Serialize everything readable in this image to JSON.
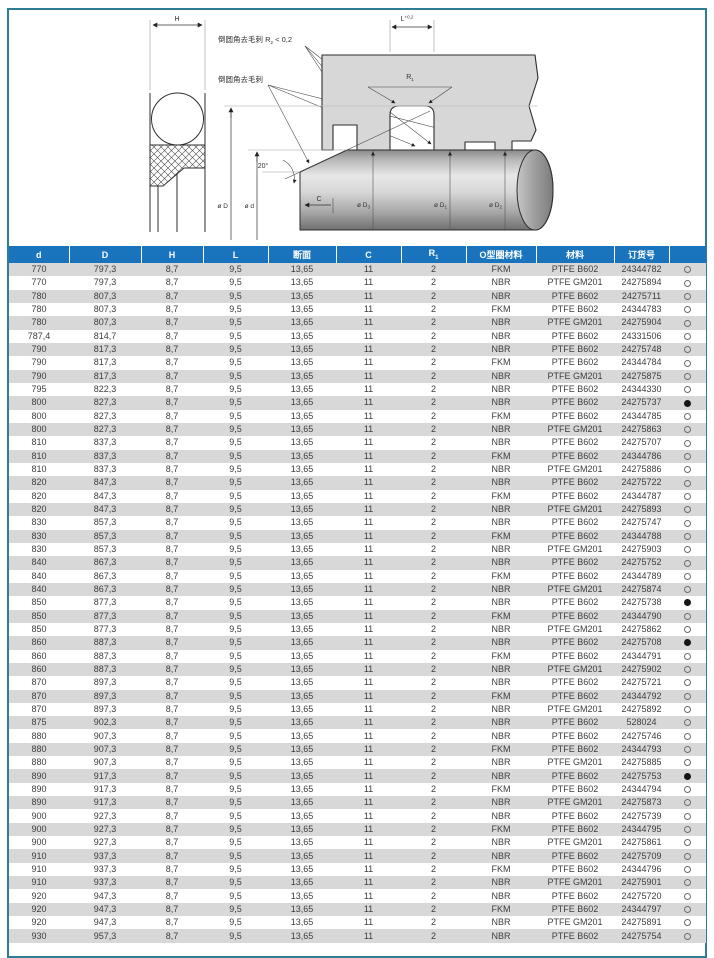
{
  "colors": {
    "header_blue": "#1a74bd",
    "stripe_gray": "#d8d8d8",
    "frame_teal": "#2f7d95",
    "housing_gray": "#d7d7d7",
    "text_dark": "#3d3d3d"
  },
  "diagram": {
    "dim_h": "H",
    "dim_l_base": "L",
    "dim_l_sup": "+0,2",
    "note_top_base": "倒圆角去毛刺 R",
    "note_top_sub": "2",
    "note_top_tail": " < 0,2",
    "note_bottom": "倒圆角去毛刺",
    "r1_base": "R",
    "r1_sub": "1",
    "angle": "20°",
    "dim_c": "C",
    "dia_outer": "ø D",
    "dia_inner": "ø d",
    "rod_dia_labels": [
      {
        "base": "ø D",
        "sub": "3"
      },
      {
        "base": "ø D",
        "sub": "1"
      },
      {
        "base": "ø D",
        "sub": "2"
      }
    ]
  },
  "table": {
    "columns": [
      {
        "label": "d"
      },
      {
        "label": "D"
      },
      {
        "label": "H"
      },
      {
        "label": "L"
      },
      {
        "label": "断面"
      },
      {
        "label": "C"
      },
      {
        "label": "R",
        "sub": "1"
      },
      {
        "label": "O型圈材料"
      },
      {
        "label": "材料"
      },
      {
        "label": "订货号"
      },
      {
        "label": ""
      }
    ],
    "rows": [
      [
        "770",
        "797,3",
        "8,7",
        "9,5",
        "13,65",
        "11",
        "2",
        "FKM",
        "PTFE B602",
        "24344782",
        "open"
      ],
      [
        "770",
        "797,3",
        "8,7",
        "9,5",
        "13,65",
        "11",
        "2",
        "NBR",
        "PTFE GM201",
        "24275894",
        "open"
      ],
      [
        "780",
        "807,3",
        "8,7",
        "9,5",
        "13,65",
        "11",
        "2",
        "NBR",
        "PTFE B602",
        "24275711",
        "open"
      ],
      [
        "780",
        "807,3",
        "8,7",
        "9,5",
        "13,65",
        "11",
        "2",
        "FKM",
        "PTFE B602",
        "24344783",
        "open"
      ],
      [
        "780",
        "807,3",
        "8,7",
        "9,5",
        "13,65",
        "11",
        "2",
        "NBR",
        "PTFE GM201",
        "24275904",
        "open"
      ],
      [
        "787,4",
        "814,7",
        "8,7",
        "9,5",
        "13,65",
        "11",
        "2",
        "NBR",
        "PTFE B602",
        "24331506",
        "open"
      ],
      [
        "790",
        "817,3",
        "8,7",
        "9,5",
        "13,65",
        "11",
        "2",
        "NBR",
        "PTFE B602",
        "24275748",
        "open"
      ],
      [
        "790",
        "817,3",
        "8,7",
        "9,5",
        "13,65",
        "11",
        "2",
        "FKM",
        "PTFE B602",
        "24344784",
        "open"
      ],
      [
        "790",
        "817,3",
        "8,7",
        "9,5",
        "13,65",
        "11",
        "2",
        "NBR",
        "PTFE GM201",
        "24275875",
        "open"
      ],
      [
        "795",
        "822,3",
        "8,7",
        "9,5",
        "13,65",
        "11",
        "2",
        "NBR",
        "PTFE B602",
        "24344330",
        "open"
      ],
      [
        "800",
        "827,3",
        "8,7",
        "9,5",
        "13,65",
        "11",
        "2",
        "NBR",
        "PTFE B602",
        "24275737",
        "filled"
      ],
      [
        "800",
        "827,3",
        "8,7",
        "9,5",
        "13,65",
        "11",
        "2",
        "FKM",
        "PTFE B602",
        "24344785",
        "open"
      ],
      [
        "800",
        "827,3",
        "8,7",
        "9,5",
        "13,65",
        "11",
        "2",
        "NBR",
        "PTFE GM201",
        "24275863",
        "open"
      ],
      [
        "810",
        "837,3",
        "8,7",
        "9,5",
        "13,65",
        "11",
        "2",
        "NBR",
        "PTFE B602",
        "24275707",
        "open"
      ],
      [
        "810",
        "837,3",
        "8,7",
        "9,5",
        "13,65",
        "11",
        "2",
        "FKM",
        "PTFE B602",
        "24344786",
        "open"
      ],
      [
        "810",
        "837,3",
        "8,7",
        "9,5",
        "13,65",
        "11",
        "2",
        "NBR",
        "PTFE GM201",
        "24275886",
        "open"
      ],
      [
        "820",
        "847,3",
        "8,7",
        "9,5",
        "13,65",
        "11",
        "2",
        "NBR",
        "PTFE B602",
        "24275722",
        "open"
      ],
      [
        "820",
        "847,3",
        "8,7",
        "9,5",
        "13,65",
        "11",
        "2",
        "FKM",
        "PTFE B602",
        "24344787",
        "open"
      ],
      [
        "820",
        "847,3",
        "8,7",
        "9,5",
        "13,65",
        "11",
        "2",
        "NBR",
        "PTFE GM201",
        "24275893",
        "open"
      ],
      [
        "830",
        "857,3",
        "8,7",
        "9,5",
        "13,65",
        "11",
        "2",
        "NBR",
        "PTFE B602",
        "24275747",
        "open"
      ],
      [
        "830",
        "857,3",
        "8,7",
        "9,5",
        "13,65",
        "11",
        "2",
        "FKM",
        "PTFE B602",
        "24344788",
        "open"
      ],
      [
        "830",
        "857,3",
        "8,7",
        "9,5",
        "13,65",
        "11",
        "2",
        "NBR",
        "PTFE GM201",
        "24275903",
        "open"
      ],
      [
        "840",
        "867,3",
        "8,7",
        "9,5",
        "13,65",
        "11",
        "2",
        "NBR",
        "PTFE B602",
        "24275752",
        "open"
      ],
      [
        "840",
        "867,3",
        "8,7",
        "9,5",
        "13,65",
        "11",
        "2",
        "FKM",
        "PTFE B602",
        "24344789",
        "open"
      ],
      [
        "840",
        "867,3",
        "8,7",
        "9,5",
        "13,65",
        "11",
        "2",
        "NBR",
        "PTFE GM201",
        "24275874",
        "open"
      ],
      [
        "850",
        "877,3",
        "8,7",
        "9,5",
        "13,65",
        "11",
        "2",
        "NBR",
        "PTFE B602",
        "24275738",
        "filled"
      ],
      [
        "850",
        "877,3",
        "8,7",
        "9,5",
        "13,65",
        "11",
        "2",
        "FKM",
        "PTFE B602",
        "24344790",
        "open"
      ],
      [
        "850",
        "877,3",
        "8,7",
        "9,5",
        "13,65",
        "11",
        "2",
        "NBR",
        "PTFE GM201",
        "24275862",
        "open"
      ],
      [
        "860",
        "887,3",
        "8,7",
        "9,5",
        "13,65",
        "11",
        "2",
        "NBR",
        "PTFE B602",
        "24275708",
        "filled"
      ],
      [
        "860",
        "887,3",
        "8,7",
        "9,5",
        "13,65",
        "11",
        "2",
        "FKM",
        "PTFE B602",
        "24344791",
        "open"
      ],
      [
        "860",
        "887,3",
        "8,7",
        "9,5",
        "13,65",
        "11",
        "2",
        "NBR",
        "PTFE GM201",
        "24275902",
        "open"
      ],
      [
        "870",
        "897,3",
        "8,7",
        "9,5",
        "13,65",
        "11",
        "2",
        "NBR",
        "PTFE B602",
        "24275721",
        "open"
      ],
      [
        "870",
        "897,3",
        "8,7",
        "9,5",
        "13,65",
        "11",
        "2",
        "FKM",
        "PTFE B602",
        "24344792",
        "open"
      ],
      [
        "870",
        "897,3",
        "8,7",
        "9,5",
        "13,65",
        "11",
        "2",
        "NBR",
        "PTFE GM201",
        "24275892",
        "open"
      ],
      [
        "875",
        "902,3",
        "8,7",
        "9,5",
        "13,65",
        "11",
        "2",
        "NBR",
        "PTFE B602",
        "528024",
        "open"
      ],
      [
        "880",
        "907,3",
        "8,7",
        "9,5",
        "13,65",
        "11",
        "2",
        "NBR",
        "PTFE B602",
        "24275746",
        "open"
      ],
      [
        "880",
        "907,3",
        "8,7",
        "9,5",
        "13,65",
        "11",
        "2",
        "FKM",
        "PTFE B602",
        "24344793",
        "open"
      ],
      [
        "880",
        "907,3",
        "8,7",
        "9,5",
        "13,65",
        "11",
        "2",
        "NBR",
        "PTFE GM201",
        "24275885",
        "open"
      ],
      [
        "890",
        "917,3",
        "8,7",
        "9,5",
        "13,65",
        "11",
        "2",
        "NBR",
        "PTFE B602",
        "24275753",
        "filled"
      ],
      [
        "890",
        "917,3",
        "8,7",
        "9,5",
        "13,65",
        "11",
        "2",
        "FKM",
        "PTFE B602",
        "24344794",
        "open"
      ],
      [
        "890",
        "917,3",
        "8,7",
        "9,5",
        "13,65",
        "11",
        "2",
        "NBR",
        "PTFE GM201",
        "24275873",
        "open"
      ],
      [
        "900",
        "927,3",
        "8,7",
        "9,5",
        "13,65",
        "11",
        "2",
        "NBR",
        "PTFE B602",
        "24275739",
        "open"
      ],
      [
        "900",
        "927,3",
        "8,7",
        "9,5",
        "13,65",
        "11",
        "2",
        "FKM",
        "PTFE B602",
        "24344795",
        "open"
      ],
      [
        "900",
        "927,3",
        "8,7",
        "9,5",
        "13,65",
        "11",
        "2",
        "NBR",
        "PTFE GM201",
        "24275861",
        "open"
      ],
      [
        "910",
        "937,3",
        "8,7",
        "9,5",
        "13,65",
        "11",
        "2",
        "NBR",
        "PTFE B602",
        "24275709",
        "open"
      ],
      [
        "910",
        "937,3",
        "8,7",
        "9,5",
        "13,65",
        "11",
        "2",
        "FKM",
        "PTFE B602",
        "24344796",
        "open"
      ],
      [
        "910",
        "937,3",
        "8,7",
        "9,5",
        "13,65",
        "11",
        "2",
        "NBR",
        "PTFE GM201",
        "24275901",
        "open"
      ],
      [
        "920",
        "947,3",
        "8,7",
        "9,5",
        "13,65",
        "11",
        "2",
        "NBR",
        "PTFE B602",
        "24275720",
        "open"
      ],
      [
        "920",
        "947,3",
        "8,7",
        "9,5",
        "13,65",
        "11",
        "2",
        "FKM",
        "PTFE B602",
        "24344797",
        "open"
      ],
      [
        "920",
        "947,3",
        "8,7",
        "9,5",
        "13,65",
        "11",
        "2",
        "NBR",
        "PTFE GM201",
        "24275891",
        "open"
      ],
      [
        "930",
        "957,3",
        "8,7",
        "9,5",
        "13,65",
        "11",
        "2",
        "NBR",
        "PTFE B602",
        "24275754",
        "open"
      ]
    ]
  }
}
